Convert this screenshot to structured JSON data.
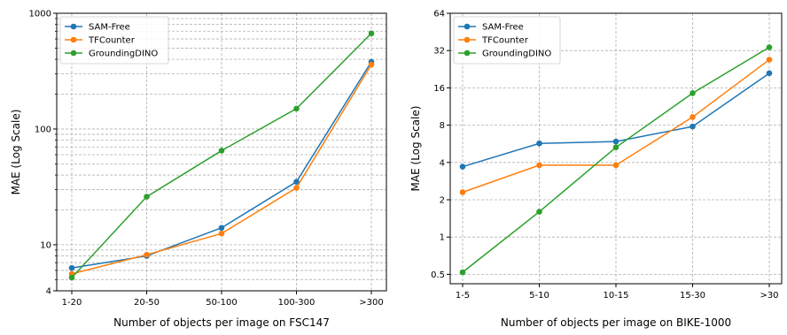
{
  "chart_data": [
    {
      "type": "line",
      "title": "",
      "xlabel": "Number of objects per image on FSC147",
      "ylabel": "MAE (Log Scale)",
      "yscale": "log",
      "ylim": [
        4,
        1000
      ],
      "yticks": [
        4,
        10,
        100,
        1000
      ],
      "ytick_labels": [
        "4",
        "10",
        "100",
        "1000"
      ],
      "categories": [
        "1-20",
        "20-50",
        "50-100",
        "100-300",
        ">300"
      ],
      "grid": true,
      "legend_position": "top-left",
      "series": [
        {
          "name": "SAM-Free",
          "color": "#1f77b4",
          "values": [
            6.3,
            8.0,
            14.0,
            35.0,
            380.0
          ]
        },
        {
          "name": "TFCounter",
          "color": "#ff7f0e",
          "values": [
            5.6,
            8.2,
            12.5,
            31.0,
            360.0
          ]
        },
        {
          "name": "GroundingDINO",
          "color": "#2ca02c",
          "values": [
            5.2,
            26.0,
            65.0,
            150.0,
            670.0
          ]
        }
      ]
    },
    {
      "type": "line",
      "title": "",
      "xlabel": "Number of objects per image on BIKE-1000",
      "ylabel": "MAE (Log Scale)",
      "yscale": "log",
      "ylim": [
        0.42,
        64
      ],
      "yticks": [
        0.5,
        1,
        2,
        4,
        8,
        16,
        32,
        64
      ],
      "ytick_labels": [
        "0.5",
        "1",
        "2",
        "4",
        "8",
        "16",
        "32",
        "64"
      ],
      "categories": [
        "1-5",
        "5-10",
        "10-15",
        "15-30",
        ">30"
      ],
      "grid": true,
      "legend_position": "top-left",
      "series": [
        {
          "name": "SAM-Free",
          "color": "#1f77b4",
          "values": [
            3.7,
            5.7,
            5.9,
            7.8,
            21.0
          ]
        },
        {
          "name": "TFCounter",
          "color": "#ff7f0e",
          "values": [
            2.3,
            3.8,
            3.8,
            9.3,
            27.0
          ]
        },
        {
          "name": "GroundingDINO",
          "color": "#2ca02c",
          "values": [
            0.52,
            1.6,
            5.3,
            14.5,
            34.0
          ]
        }
      ]
    }
  ]
}
